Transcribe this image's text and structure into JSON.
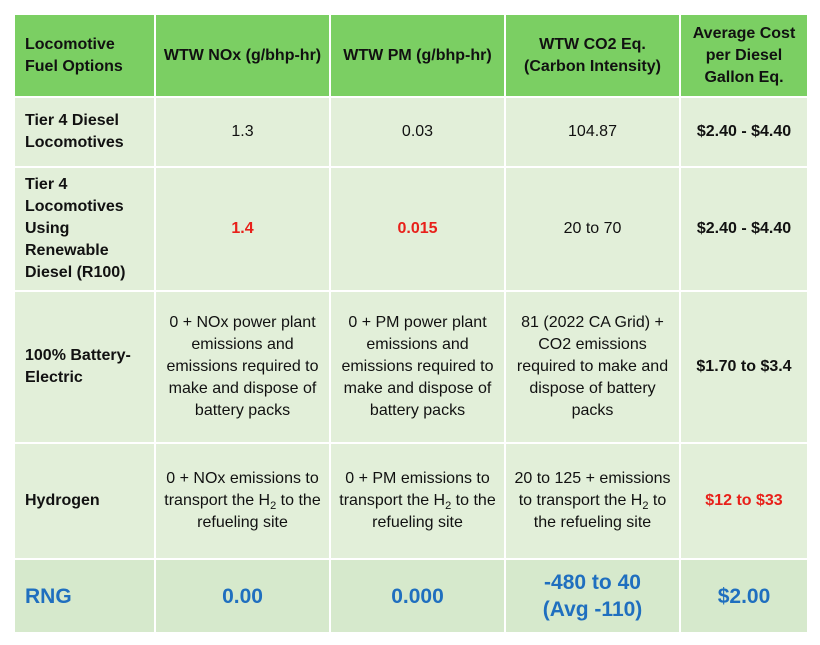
{
  "headers": [
    "Locomotive Fuel Options",
    "WTW NOx (g/bhp-hr)",
    "WTW PM (g/bhp-hr)",
    "WTW CO2 Eq. (Carbon Intensity)",
    "Average Cost per Diesel Gallon Eq."
  ],
  "rows": [
    {
      "option": "Tier 4 Diesel Locomotives",
      "nox": "1.3",
      "pm": "0.03",
      "co2": "104.87",
      "cost": "$2.40 - $4.40"
    },
    {
      "option": "Tier 4 Locomotives Using Renewable Diesel (R100)",
      "nox": "1.4",
      "pm": "0.015",
      "co2": "20 to 70",
      "cost": "$2.40 - $4.40"
    },
    {
      "option": "100% Battery-Electric",
      "nox": "0 + NOx power plant emissions and emissions required to make and dispose of battery packs",
      "pm": "0 + PM power plant emissions and emissions required to make and dispose of battery packs",
      "co2": "81 (2022 CA Grid) + CO2 emissions required to make and dispose of battery packs",
      "cost": "$1.70 to $3.4"
    },
    {
      "option": "Hydrogen",
      "nox_pre": "0 + NOx emissions to transport the H",
      "nox_sub": "2",
      "nox_post": " to the refueling site",
      "pm_pre": "0 + PM emissions to transport the H",
      "pm_sub": "2",
      "pm_post": " to the refueling site",
      "co2_pre": "20 to 125 + emissions to transport the H",
      "co2_sub": "2",
      "co2_post": " to the refueling site",
      "cost": "$12 to $33"
    },
    {
      "option": "RNG",
      "nox": "0.00",
      "pm": "0.000",
      "co2_line1": "-480 to 40",
      "co2_line2": "(Avg -110)",
      "cost": "$2.00"
    }
  ],
  "colors": {
    "header_bg": "#7bcf63",
    "row_bg": "#e2efd9",
    "highlight_red": "#e8201a",
    "rng_blue": "#1f6fbf"
  }
}
